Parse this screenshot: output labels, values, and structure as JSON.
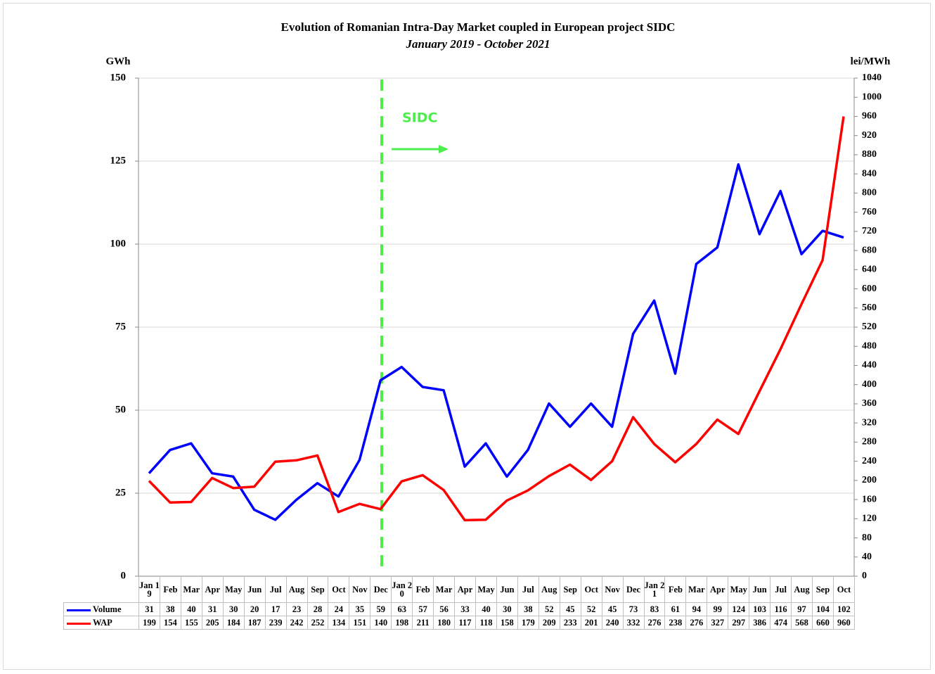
{
  "chart_data": {
    "type": "line",
    "title": "Evolution of Romanian Intra-Day Market coupled in European project SIDC",
    "subtitle": "January 2019 - October 2021",
    "y_label": "GWh",
    "y2_label": "lei/MWh",
    "annotation": "SIDC",
    "categories": [
      "Jan 19",
      "Feb",
      "Mar",
      "Apr",
      "May",
      "Jun",
      "Jul",
      "Aug",
      "Sep",
      "Oct",
      "Nov",
      "Dec",
      "Jan 20",
      "Feb",
      "Mar",
      "Apr",
      "May",
      "Jun",
      "Jul",
      "Aug",
      "Sep",
      "Oct",
      "Nov",
      "Dec",
      "Jan 21",
      "Feb",
      "Mar",
      "Apr",
      "May",
      "Jun",
      "Jul",
      "Aug",
      "Sep",
      "Oct"
    ],
    "series": [
      {
        "name": "Volume",
        "color": "#0000ff",
        "axis": "y",
        "values": [
          31,
          38,
          40,
          31,
          30,
          20,
          17,
          23,
          28,
          24,
          35,
          59,
          63,
          57,
          56,
          33,
          40,
          30,
          38,
          52,
          45,
          52,
          45,
          73,
          83,
          61,
          94,
          99,
          124,
          103,
          116,
          97,
          104,
          102
        ]
      },
      {
        "name": "WAP",
        "color": "#ff0000",
        "axis": "y2",
        "values": [
          199,
          154,
          155,
          205,
          184,
          187,
          239,
          242,
          252,
          134,
          151,
          140,
          198,
          211,
          180,
          117,
          118,
          158,
          179,
          209,
          233,
          201,
          240,
          332,
          276,
          238,
          276,
          327,
          297,
          386,
          474,
          568,
          660,
          960
        ]
      }
    ],
    "ylim": [
      0,
      150
    ],
    "yticks": [
      0,
      25,
      50,
      75,
      100,
      125,
      150
    ],
    "y2lim": [
      0,
      1040
    ],
    "y2ticks": [
      0,
      40,
      80,
      120,
      160,
      200,
      240,
      280,
      320,
      360,
      400,
      440,
      480,
      520,
      560,
      600,
      640,
      680,
      720,
      760,
      800,
      840,
      880,
      920,
      960,
      1000,
      1040
    ],
    "grid": true
  }
}
